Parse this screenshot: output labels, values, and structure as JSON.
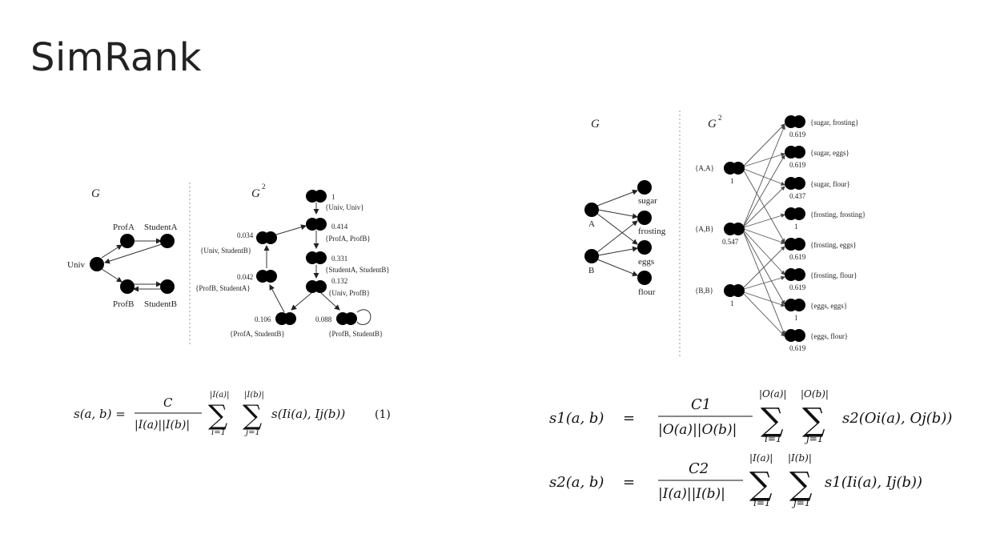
{
  "title": "SimRank",
  "left_graph": {
    "g_label": "G",
    "g2_label": "G",
    "g2_sup": "2",
    "nodes": {
      "univ": "Univ",
      "profA": "ProfA",
      "studentA": "StudentA",
      "profB": "ProfB",
      "studentB": "StudentB"
    },
    "pairs": [
      {
        "score": "1",
        "label": "{Univ, Univ}"
      },
      {
        "score": "0.414",
        "label": "{ProfA, ProfB}"
      },
      {
        "score": "0.331",
        "label": "{StudentA, StudentB}"
      },
      {
        "score": "0.132",
        "label": "{Univ, ProfB}"
      },
      {
        "score": "0.034",
        "label": "{Univ, StudentB}"
      },
      {
        "score": "0.042",
        "label": "{ProfB, StudentA}"
      },
      {
        "score": "0.106",
        "label": "{ProfA, StudentB}"
      },
      {
        "score": "0.088",
        "label": "{ProfB, StudentB}"
      }
    ]
  },
  "right_graph": {
    "g_label": "G",
    "g2_label": "G",
    "g2_sup": "2",
    "nodes": {
      "a": "A",
      "b": "B",
      "sugar": "sugar",
      "frosting": "frosting",
      "eggs": "eggs",
      "flour": "flour"
    },
    "left_pairs": [
      {
        "label": "{A,A}",
        "score": "1"
      },
      {
        "label": "{A,B}",
        "score": "0.547"
      },
      {
        "label": "{B,B}",
        "score": "1"
      }
    ],
    "right_pairs": [
      {
        "label": "{sugar, frosting}",
        "score": "0.619"
      },
      {
        "label": "{sugar, eggs}",
        "score": "0.619"
      },
      {
        "label": "{sugar, flour}",
        "score": "0.437"
      },
      {
        "label": "{frosting, frosting}",
        "score": "1"
      },
      {
        "label": "{frosting, eggs}",
        "score": "0.619"
      },
      {
        "label": "{frosting, flour}",
        "score": "0.619"
      },
      {
        "label": "{eggs, eggs}",
        "score": "1"
      },
      {
        "label": "{eggs, flour}",
        "score": "0.619"
      }
    ]
  },
  "formula1": {
    "lhs": "s(a, b) =",
    "num": "C",
    "den": "|I(a)||I(b)|",
    "sum_top1": "|I(a)|",
    "sum_top2": "|I(b)|",
    "sum_bot1": "i=1",
    "sum_bot2": "j=1",
    "body": "s(I",
    "body_full": "s(Ii(a), Ij(b))",
    "number": "(1)"
  },
  "formula2": {
    "lhs": "s1(a, b)",
    "eq": "=",
    "num": "C1",
    "den": "|O(a)||O(b)|",
    "sum_top1": "|O(a)|",
    "sum_top2": "|O(b)|",
    "sum_bot1": "i=1",
    "sum_bot2": "j=1",
    "body": "s2(Oi(a), Oj(b))"
  },
  "formula3": {
    "lhs": "s2(a, b)",
    "eq": "=",
    "num": "C2",
    "den": "|I(a)||I(b)|",
    "sum_top1": "|I(a)|",
    "sum_top2": "|I(b)|",
    "sum_bot1": "i=1",
    "sum_bot2": "j=1",
    "body": "s1(Ii(a), Ij(b))"
  }
}
